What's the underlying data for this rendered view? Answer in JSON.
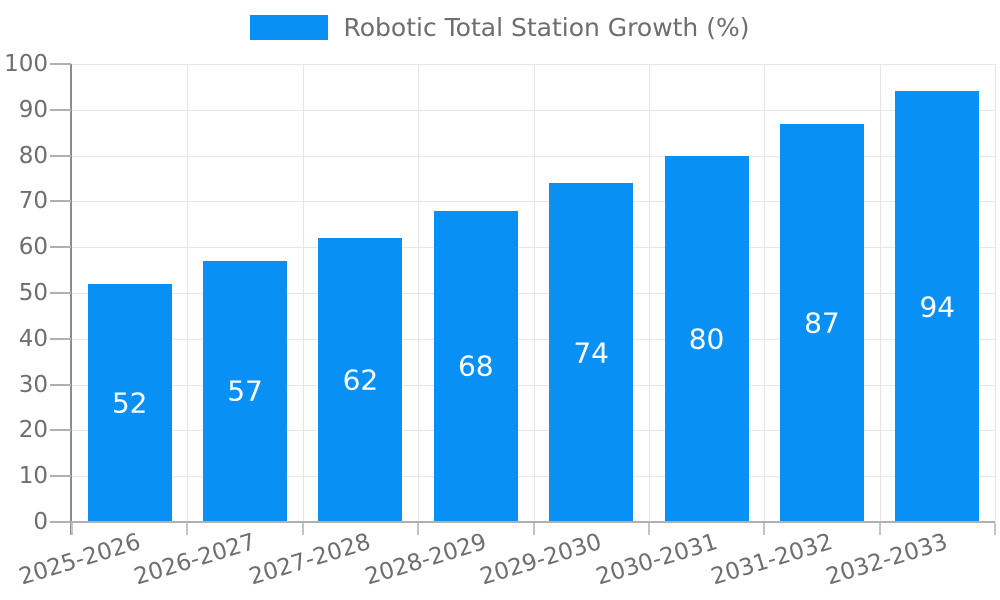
{
  "chart_data": {
    "type": "bar",
    "title": "Robotic Total Station Growth (%)",
    "legend": [
      "Robotic Total Station Growth (%)"
    ],
    "legend_position": "top-center",
    "categories": [
      "2025-2026",
      "2026-2027",
      "2027-2028",
      "2028-2029",
      "2029-2030",
      "2030-2031",
      "2031-2032",
      "2032-2033"
    ],
    "values": [
      52,
      57,
      62,
      68,
      74,
      80,
      87,
      94
    ],
    "xlabel": "",
    "ylabel": "",
    "ylim": [
      0,
      100
    ],
    "ytick_step": 10,
    "yticks": [
      0,
      10,
      20,
      30,
      40,
      50,
      60,
      70,
      80,
      90,
      100
    ],
    "grid": "both",
    "value_labels": "inside-center"
  },
  "colors": {
    "bar": "#0990f5",
    "value_label": "#ffffff",
    "axis_label": "#6e6e6e",
    "legend_text": "#6e6e6e",
    "gridline": "#e6e6e6",
    "y_axis_line": "#8c8c8c",
    "x_axis_line": "#b0b0b0",
    "tick_mark": "#b0b0b0",
    "background": "#ffffff"
  }
}
